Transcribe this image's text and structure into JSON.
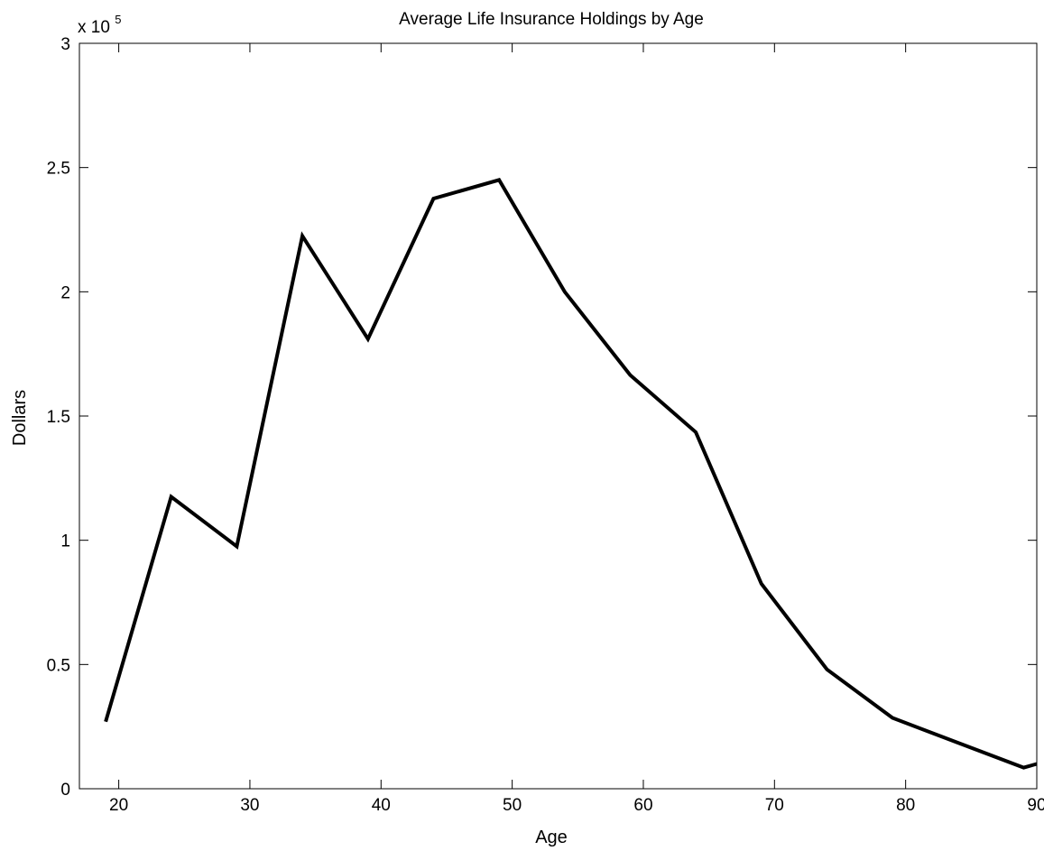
{
  "chart_data": {
    "type": "line",
    "title": "Average Life Insurance Holdings by Age",
    "xlabel": "Age",
    "ylabel": "Dollars",
    "y_exponent_base": "x 10",
    "y_exponent_power": "5",
    "xlim": [
      17,
      90
    ],
    "ylim": [
      0,
      3
    ],
    "y_scale_multiplier": 100000,
    "grid": false,
    "legend": "none",
    "xticks": [
      20,
      30,
      40,
      50,
      60,
      70,
      80,
      90
    ],
    "xtick_labels": [
      "20",
      "30",
      "40",
      "50",
      "60",
      "70",
      "80",
      "90"
    ],
    "yticks": [
      0,
      0.5,
      1,
      1.5,
      2,
      2.5,
      3
    ],
    "ytick_labels": [
      "0",
      "0.5",
      "1",
      "1.5",
      "2",
      "2.5",
      "3"
    ],
    "x": [
      19,
      24,
      29,
      34,
      39,
      44,
      49,
      54,
      59,
      64,
      69,
      74,
      79,
      84,
      89,
      90
    ],
    "series": [
      {
        "values": [
          0.27,
          1.175,
          0.975,
          2.225,
          1.81,
          2.375,
          2.45,
          2.0,
          1.665,
          1.435,
          0.825,
          0.48,
          0.285,
          0.185,
          0.085,
          0.1
        ],
        "color": "#000000"
      }
    ]
  }
}
